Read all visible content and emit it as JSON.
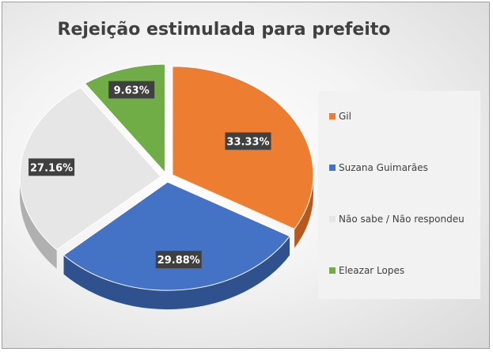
{
  "chart_data": {
    "type": "pie",
    "title": "Rejeição estimulada para prefeito",
    "categories": [
      "Gil",
      "Suzana Guimarães",
      "Não sabe / Não respondeu",
      "Eleazar Lopes"
    ],
    "values": [
      33.33,
      29.88,
      27.16,
      9.63
    ],
    "labels": [
      "33.33%",
      "29.88%",
      "27.16%",
      "9.63%"
    ],
    "colors": [
      "#ED7D31",
      "#4472C4",
      "#E7E6E6",
      "#70AD47"
    ],
    "shadow_colors": [
      "#B5591C",
      "#2F528F",
      "#B0B0B0",
      "#4E7A30"
    ],
    "exploded": true,
    "style": "3d",
    "legend_position": "right"
  }
}
